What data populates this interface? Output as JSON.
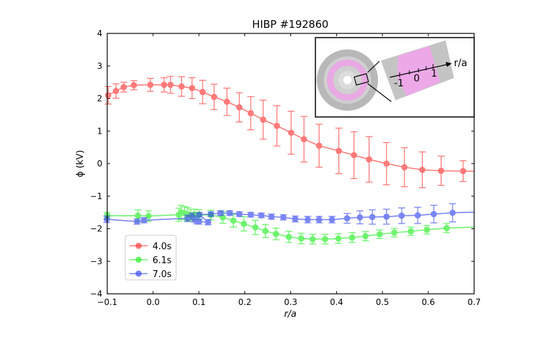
{
  "chart_data": {
    "type": "line",
    "title": "HIBP #192860",
    "xlabel": "r/a",
    "ylabel": "ϕ (kV)",
    "xlim": [
      -0.1,
      0.7
    ],
    "ylim": [
      -4,
      4
    ],
    "xticks": [
      "−0.1",
      "0.0",
      "0.1",
      "0.2",
      "0.3",
      "0.4",
      "0.5",
      "0.6",
      "0.7"
    ],
    "yticks": [
      "−4",
      "−3",
      "−2",
      "−1",
      "0",
      "1",
      "2",
      "3",
      "4"
    ],
    "grid": false,
    "legend_position": "bottom-left",
    "series": [
      {
        "name": "4.0s",
        "color": "#ff3333",
        "x": [
          -0.098,
          -0.081,
          -0.064,
          -0.042,
          -0.006,
          0.024,
          0.038,
          0.062,
          0.085,
          0.108,
          0.133,
          0.161,
          0.188,
          0.213,
          0.24,
          0.27,
          0.301,
          0.329,
          0.362,
          0.405,
          0.438,
          0.471,
          0.509,
          0.548,
          0.587,
          0.628,
          0.676
        ],
        "y": [
          2.1,
          2.23,
          2.35,
          2.41,
          2.42,
          2.42,
          2.42,
          2.37,
          2.32,
          2.2,
          2.05,
          1.9,
          1.73,
          1.55,
          1.35,
          1.16,
          0.95,
          0.75,
          0.55,
          0.39,
          0.26,
          0.13,
          0.0,
          -0.11,
          -0.19,
          -0.22,
          -0.23
        ],
        "err": [
          0.27,
          0.22,
          0.15,
          0.14,
          0.2,
          0.22,
          0.26,
          0.3,
          0.32,
          0.36,
          0.39,
          0.42,
          0.45,
          0.51,
          0.6,
          0.62,
          0.66,
          0.7,
          0.66,
          0.7,
          0.72,
          0.7,
          0.65,
          0.6,
          0.55,
          0.45,
          0.32
        ],
        "x_end": 0.7,
        "y_end": -0.23
      },
      {
        "name": "6.1s",
        "color": "#22ee22",
        "x": [
          -0.1,
          -0.033,
          -0.01,
          0.056,
          0.061,
          0.068,
          0.075,
          0.082,
          0.09,
          0.1,
          0.126,
          0.152,
          0.175,
          0.198,
          0.223,
          0.245,
          0.268,
          0.296,
          0.323,
          0.348,
          0.375,
          0.404,
          0.434,
          0.463,
          0.494,
          0.526,
          0.562,
          0.597,
          0.64
        ],
        "y": [
          -1.6,
          -1.6,
          -1.61,
          -1.57,
          -1.5,
          -1.52,
          -1.55,
          -1.58,
          -1.56,
          -1.57,
          -1.58,
          -1.65,
          -1.75,
          -1.85,
          -1.96,
          -2.07,
          -2.16,
          -2.25,
          -2.3,
          -2.32,
          -2.32,
          -2.3,
          -2.27,
          -2.23,
          -2.17,
          -2.12,
          -2.08,
          -2.03,
          -1.98
        ],
        "err": [
          0.1,
          0.18,
          0.16,
          0.2,
          0.22,
          0.2,
          0.2,
          0.18,
          0.16,
          0.15,
          0.15,
          0.18,
          0.2,
          0.22,
          0.22,
          0.2,
          0.18,
          0.17,
          0.16,
          0.15,
          0.15,
          0.15,
          0.15,
          0.14,
          0.13,
          0.13,
          0.13,
          0.13,
          0.14
        ],
        "x_end": 0.7,
        "y_end": -1.95
      },
      {
        "name": "7.0s",
        "color": "#3344ee",
        "x": [
          -0.101,
          -0.035,
          -0.02,
          0.075,
          0.085,
          0.09,
          0.095,
          0.1,
          0.12,
          0.101,
          0.126,
          0.147,
          0.167,
          0.188,
          0.213,
          0.236,
          0.258,
          0.284,
          0.31,
          0.337,
          0.362,
          0.39,
          0.423,
          0.451,
          0.478,
          0.509,
          0.542,
          0.577,
          0.612,
          0.653
        ],
        "y": [
          -1.71,
          -1.78,
          -1.74,
          -1.68,
          -1.62,
          -1.7,
          -1.75,
          -1.78,
          -1.8,
          -1.57,
          -1.55,
          -1.52,
          -1.52,
          -1.55,
          -1.57,
          -1.59,
          -1.63,
          -1.65,
          -1.7,
          -1.72,
          -1.72,
          -1.72,
          -1.68,
          -1.65,
          -1.64,
          -1.63,
          -1.6,
          -1.59,
          -1.55,
          -1.51
        ],
        "err": [
          0.1,
          0.08,
          0.08,
          0.1,
          0.1,
          0.1,
          0.1,
          0.08,
          0.08,
          0.07,
          0.07,
          0.07,
          0.07,
          0.07,
          0.07,
          0.07,
          0.08,
          0.08,
          0.09,
          0.1,
          0.1,
          0.1,
          0.15,
          0.2,
          0.22,
          0.23,
          0.24,
          0.25,
          0.27,
          0.28
        ],
        "x_end": 0.7,
        "y_end": -1.49
      }
    ]
  },
  "inset": {
    "axis_label": "r/a",
    "tick_labels": [
      "-1",
      "0",
      "1"
    ]
  }
}
